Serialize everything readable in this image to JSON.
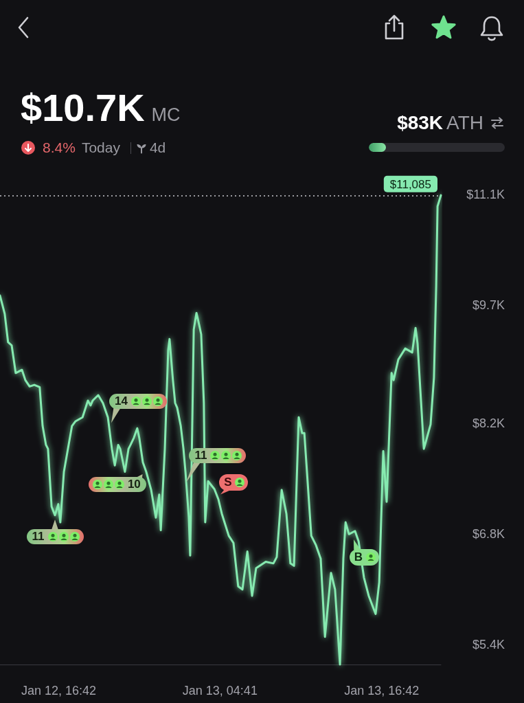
{
  "chart_data": {
    "type": "line",
    "title": "$10.7K",
    "annotations": [
      "MC",
      "8.4%",
      "Today",
      "4d",
      "$83K",
      "ATH",
      {
        "text": "11",
        "x": "--01-12T16:25",
        "y": 7050
      },
      {
        "text": "14",
        "x": "--01-12T20:27",
        "y": 8150
      },
      {
        "text": "10",
        "x": "--01-12T23:12",
        "y": 7600
      },
      {
        "text": "11",
        "x": "--01-13T01:58",
        "y": 7400
      },
      {
        "text": "S",
        "x": "--01-13T04:25",
        "y": 7270
      },
      {
        "text": "B",
        "x": "--01-13T14:31",
        "y": 6790
      }
    ],
    "x": [
      "--01-12T12:20",
      "--01-12T12:41",
      "--01-12T12:56",
      "--01-12T13:12",
      "--01-12T13:30",
      "--01-12T13:58",
      "--01-12T14:13",
      "--01-12T14:32",
      "--01-12T14:53",
      "--01-12T15:17",
      "--01-12T15:30",
      "--01-12T15:45",
      "--01-12T15:54",
      "--01-12T16:10",
      "--01-12T16:25",
      "--01-12T16:40",
      "--01-12T16:49",
      "--01-12T17:05",
      "--01-12T17:26",
      "--01-12T17:41",
      "--01-12T17:57",
      "--01-12T18:28",
      "--01-12T18:52",
      "--01-12T19:04",
      "--01-12T19:13",
      "--01-12T19:38",
      "--01-12T19:59",
      "--01-12T20:21",
      "--01-12T20:39",
      "--01-12T20:52",
      "--01-12T21:07",
      "--01-12T21:16",
      "--01-12T21:37",
      "--01-12T21:53",
      "--01-12T22:02",
      "--01-12T22:17",
      "--01-12T22:32",
      "--01-12T22:41",
      "--01-12T22:57",
      "--01-12T23:12",
      "--01-12T23:34",
      "--01-12T23:55",
      "--01-13T00:10",
      "--01-13T00:17",
      "--01-13T00:35",
      "--01-13T00:50",
      "--01-13T00:56",
      "--01-13T01:11",
      "--01-13T01:21",
      "--01-13T01:30",
      "--01-13T01:46",
      "--01-13T01:58",
      "--01-13T02:07",
      "--01-13T02:22",
      "--01-13T02:28",
      "--01-13T02:44",
      "--01-13T02:56",
      "--01-13T03:08",
      "--01-13T03:17",
      "--01-13T03:29",
      "--01-13T03:35",
      "--01-13T03:48",
      "--01-13T04:16",
      "--01-13T04:34",
      "--01-13T04:49",
      "--01-13T05:20",
      "--01-13T05:41",
      "--01-13T06:02",
      "--01-13T06:21",
      "--01-13T06:43",
      "--01-13T07:04",
      "--01-13T07:22",
      "--01-13T08:05",
      "--01-13T08:39",
      "--01-13T08:54",
      "--01-13T09:16",
      "--01-13T09:37",
      "--01-13T09:55",
      "--01-13T10:11",
      "--01-13T10:32",
      "--01-13T10:47",
      "--01-13T10:57",
      "--01-13T11:28",
      "--01-13T11:49",
      "--01-13T12:10",
      "--01-13T12:29",
      "--01-13T12:56",
      "--01-13T13:14",
      "--01-13T13:36",
      "--01-13T13:51",
      "--01-13T14:01",
      "--01-13T14:16",
      "--01-13T14:43",
      "--01-13T14:59",
      "--01-13T15:23",
      "--01-13T15:44",
      "--01-13T16:15",
      "--01-13T16:31",
      "--01-13T16:49",
      "--01-13T17:04",
      "--01-13T17:26",
      "--01-13T17:35",
      "--01-13T17:56",
      "--01-13T18:27",
      "--01-13T18:58",
      "--01-13T19:13",
      "--01-13T19:22",
      "--01-13T19:50",
      "--01-13T20:20",
      "--01-13T20:35",
      "--01-13T20:45",
      "--01-13T20:51",
      "--01-13T21:06"
    ],
    "values": [
      9820,
      9590,
      9230,
      9190,
      8840,
      8880,
      8750,
      8670,
      8690,
      8660,
      8170,
      7930,
      7880,
      7150,
      7040,
      7180,
      6950,
      7590,
      7930,
      8170,
      8230,
      8280,
      8490,
      8430,
      8490,
      8560,
      8460,
      8280,
      7880,
      7670,
      7930,
      7880,
      7590,
      7880,
      7930,
      8020,
      8140,
      8020,
      7710,
      7590,
      7360,
      7010,
      7300,
      6850,
      7880,
      9130,
      9270,
      8750,
      8460,
      8400,
      8170,
      7880,
      7590,
      7010,
      6530,
      9390,
      9600,
      9450,
      9330,
      8460,
      6950,
      7470,
      7370,
      7240,
      7060,
      6780,
      6690,
      6140,
      6100,
      6580,
      6020,
      6370,
      6450,
      6430,
      6510,
      7360,
      7060,
      6430,
      6400,
      8280,
      8080,
      8080,
      6780,
      6660,
      6490,
      5500,
      6310,
      6100,
      5150,
      6490,
      6950,
      6800,
      6840,
      6710,
      6250,
      6020,
      5790,
      6190,
      7850,
      7210,
      8840,
      8750,
      9010,
      9150,
      9100,
      9410,
      9210,
      7880,
      8190,
      8780,
      9940,
      10950,
      11090
    ],
    "color": "#86eab0",
    "marker": "none",
    "line_style": "solid",
    "xlim": [
      "--01-12T12:20",
      "--01-13T21:06"
    ],
    "ylim": [
      5150,
      11100
    ],
    "xticks": [
      {
        "value": "--01-12T16:42",
        "label": "Jan 12, 16:42"
      },
      {
        "value": "--01-13T04:41",
        "label": "Jan 13, 04:41"
      },
      {
        "value": "--01-13T16:42",
        "label": "Jan 13, 16:42"
      }
    ],
    "yticks": [
      {
        "value": 5400,
        "label": "$5.4K"
      },
      {
        "value": 6800,
        "label": "$6.8K"
      },
      {
        "value": 8200,
        "label": "$8.2K"
      },
      {
        "value": 9700,
        "label": "$9.7K"
      },
      {
        "value": 11100,
        "label": "$11.1K"
      }
    ],
    "ref_lines": [
      {
        "axis": "y",
        "value": 11085,
        "label": "$11,085",
        "color": "#c9c9ce",
        "line_style": "dotted"
      }
    ]
  }
}
